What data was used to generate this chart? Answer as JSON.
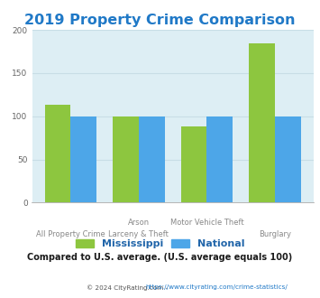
{
  "title": "2019 Property Crime Comparison",
  "title_color": "#2079c7",
  "title_fontsize": 11.5,
  "x_labels_line1": [
    "All Property Crime",
    "Arson",
    "Motor Vehicle Theft",
    "Burglary"
  ],
  "x_labels_line2": [
    "",
    "Larceny & Theft",
    "",
    ""
  ],
  "mississippi": [
    113,
    100,
    88,
    184
  ],
  "national": [
    100,
    100,
    100,
    100
  ],
  "ms_color": "#8dc63f",
  "nat_color": "#4da6e8",
  "ylim": [
    0,
    200
  ],
  "yticks": [
    0,
    50,
    100,
    150,
    200
  ],
  "plot_bg_color": "#ddeef4",
  "legend_ms": "Mississippi",
  "legend_nat": "National",
  "subtitle": "Compared to U.S. average. (U.S. average equals 100)",
  "subtitle_color": "#1a1a1a",
  "footer_left": "© 2024 CityRating.com - ",
  "footer_right": "https://www.cityrating.com/crime-statistics/",
  "footer_left_color": "#555555",
  "footer_right_color": "#2079c7",
  "bar_width": 0.38,
  "grid_color": "#c8dde6"
}
